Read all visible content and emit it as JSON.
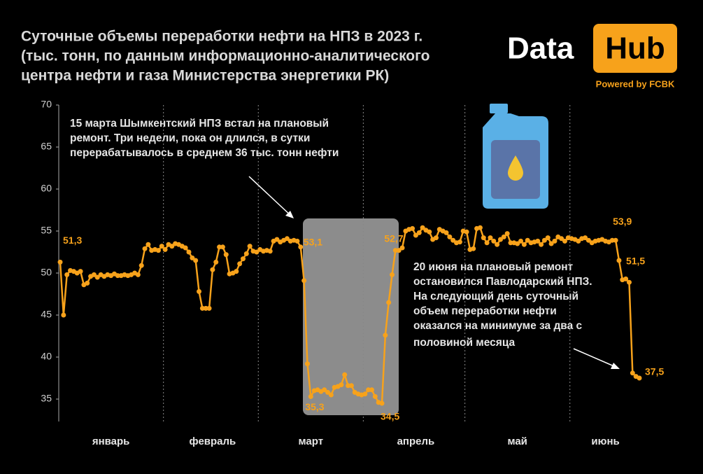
{
  "chart_data": {
    "type": "line",
    "title": [
      "Суточные объемы переработки нефти на НПЗ в 2023 г.",
      "(тыс. тонн, по данным информационно-аналитического",
      "центра нефти и газа Министерства энергетики РК)"
    ],
    "logo": {
      "left": "Data",
      "right": "Hub",
      "caption": "Powered by FCBK"
    },
    "annotations": [
      [
        "15 марта Шымкентский НПЗ встал на плановый",
        "ремонт. Три недели, пока он длился, в сутки",
        "перерабатывалось в среднем 36 тыс. тонн нефти"
      ],
      [
        "20 июня на плановый ремонт",
        "остановился Павлодарский НПЗ.",
        "На следующий день суточный",
        "объем переработки нефти",
        "оказался на минимуме за два с",
        "половиной месяца"
      ]
    ],
    "categories": [
      null,
      null,
      null,
      null,
      null,
      null,
      null,
      null,
      null,
      null,
      null,
      null,
      null,
      null,
      null,
      "январь",
      null,
      null,
      null,
      null,
      null,
      null,
      null,
      null,
      null,
      null,
      null,
      null,
      null,
      null,
      null,
      null,
      null,
      null,
      null,
      null,
      null,
      null,
      null,
      null,
      null,
      null,
      null,
      null,
      null,
      "февраль",
      null,
      null,
      null,
      null,
      null,
      null,
      null,
      null,
      null,
      null,
      null,
      null,
      null,
      null,
      null,
      null,
      null,
      null,
      null,
      null,
      null,
      null,
      null,
      null,
      null,
      null,
      null,
      null,
      "март",
      null,
      null,
      null,
      null,
      null,
      null,
      null,
      null,
      null,
      null,
      null,
      null,
      null,
      null,
      null,
      null,
      null,
      null,
      null,
      null,
      null,
      null,
      null,
      null,
      null,
      null,
      null,
      null,
      null,
      null,
      "апрель",
      null,
      null,
      null,
      null,
      null,
      null,
      null,
      null,
      null,
      null,
      null,
      null,
      null,
      null,
      null,
      null,
      null,
      null,
      null,
      null,
      null,
      null,
      null,
      null,
      null,
      null,
      null,
      null,
      null,
      "май",
      null,
      null,
      null,
      null,
      null,
      null,
      null,
      null,
      null,
      null,
      null,
      null,
      null,
      null,
      null,
      null,
      null,
      null,
      null,
      null,
      null,
      null,
      null,
      null,
      null,
      "июнь",
      null,
      null,
      null,
      null,
      null,
      null,
      null,
      null,
      null,
      null
    ],
    "series": [
      {
        "color": "#f7a21b",
        "values": [
          51.3,
          45,
          49.8,
          50.3,
          50.2,
          50,
          50.2,
          48.6,
          48.8,
          49.6,
          49.8,
          49.5,
          49.8,
          49.6,
          49.8,
          49.7,
          49.9,
          49.7,
          49.7,
          49.8,
          49.7,
          49.8,
          50,
          49.8,
          50.9,
          52.9,
          53.4,
          52.7,
          52.8,
          52.7,
          53.2,
          52.8,
          53.4,
          53.2,
          53.5,
          53.4,
          53.2,
          53,
          52.5,
          51.8,
          51.5,
          47.8,
          45.8,
          45.8,
          45.8,
          50.4,
          51.3,
          53.1,
          53.1,
          52.2,
          49.9,
          50,
          50.2,
          51.1,
          51.7,
          52.3,
          53.2,
          52.6,
          52.5,
          52.8,
          52.6,
          52.7,
          52.6,
          53.8,
          54,
          53.7,
          53.9,
          54.1,
          53.8,
          53.9,
          53.8,
          53.1,
          49.1,
          39.2,
          35.3,
          36,
          36.1,
          35.9,
          36.1,
          35.8,
          35.5,
          36.4,
          36.5,
          36.7,
          37.9,
          36.6,
          36.6,
          35.8,
          35.6,
          35.5,
          35.6,
          36.1,
          36.1,
          35.3,
          34.6,
          34.5,
          42.6,
          46.5,
          49.8,
          52.7,
          52.7,
          53,
          55,
          55.2,
          55.3,
          54.5,
          54.8,
          55.4,
          55.1,
          54.9,
          54,
          54.2,
          55.2,
          55,
          54.8,
          54.3,
          53.9,
          53.6,
          53.7,
          55,
          54.9,
          52.8,
          52.9,
          55.3,
          55.4,
          54.2,
          53.6,
          54.2,
          53.8,
          53.4,
          54,
          54.3,
          54.7,
          53.6,
          53.6,
          53.5,
          53.8,
          53.4,
          53.9,
          53.6,
          53.7,
          53.8,
          53.4,
          53.9,
          54.2,
          53.5,
          53.8,
          54.3,
          54.1,
          53.8,
          54.2,
          54.1,
          54,
          53.8,
          54.1,
          54.2,
          53.9,
          53.6,
          53.8,
          53.9,
          54,
          53.8,
          53.7,
          53.9,
          53.9,
          51.5,
          49.2,
          49.3,
          48.9,
          38.1,
          37.7,
          37.5
        ],
        "value_labels": [
          "51,3",
          null,
          null,
          null,
          null,
          null,
          null,
          null,
          null,
          null,
          null,
          null,
          null,
          null,
          null,
          null,
          null,
          null,
          null,
          null,
          null,
          null,
          null,
          null,
          null,
          null,
          null,
          null,
          null,
          null,
          null,
          null,
          null,
          null,
          null,
          null,
          null,
          null,
          null,
          null,
          null,
          null,
          null,
          null,
          null,
          null,
          null,
          null,
          null,
          null,
          null,
          null,
          null,
          null,
          null,
          null,
          null,
          null,
          null,
          null,
          null,
          null,
          null,
          null,
          null,
          null,
          null,
          null,
          null,
          null,
          null,
          "53,1",
          null,
          null,
          "35,3",
          null,
          null,
          null,
          null,
          null,
          null,
          null,
          null,
          null,
          null,
          null,
          null,
          null,
          null,
          null,
          null,
          null,
          null,
          null,
          null,
          "34,5",
          null,
          null,
          null,
          "52,7",
          null,
          null,
          null,
          null,
          null,
          null,
          null,
          null,
          null,
          null,
          null,
          null,
          null,
          null,
          null,
          null,
          null,
          null,
          null,
          null,
          null,
          null,
          null,
          null,
          null,
          null,
          null,
          null,
          null,
          null,
          null,
          null,
          null,
          null,
          null,
          null,
          null,
          null,
          null,
          null,
          null,
          null,
          null,
          null,
          null,
          null,
          null,
          null,
          null,
          null,
          null,
          null,
          null,
          null,
          null,
          null,
          null,
          null,
          null,
          null,
          null,
          null,
          null,
          null,
          "53,9",
          "51,5",
          null,
          null,
          null,
          null,
          null,
          "37,5"
        ]
      }
    ],
    "ylim": [
      32.5,
      70
    ],
    "yticks": [
      35,
      40,
      45,
      50,
      55,
      60,
      65,
      70
    ]
  }
}
